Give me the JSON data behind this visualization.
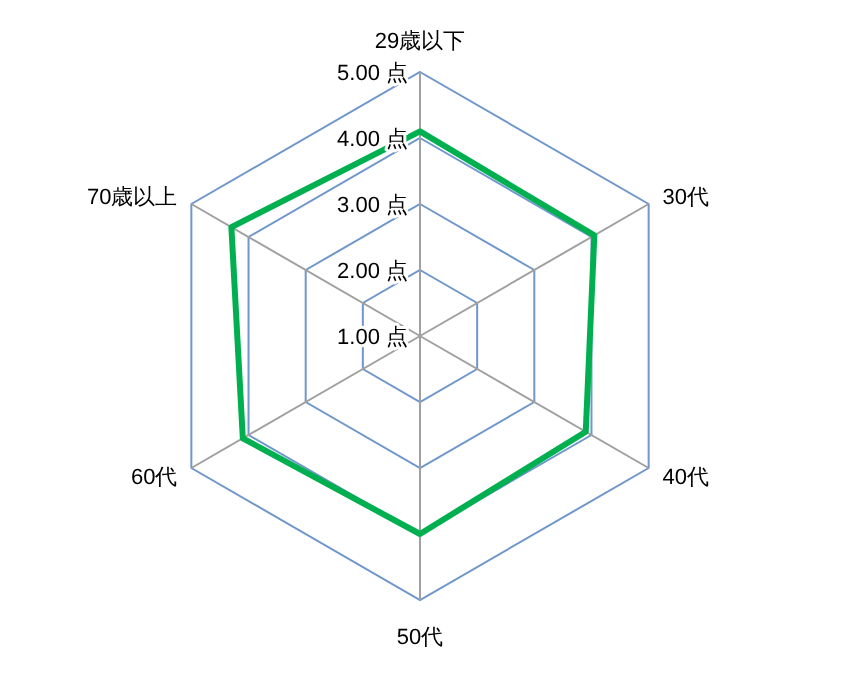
{
  "chart_data": {
    "type": "radar",
    "categories": [
      "29歳以下",
      "30代",
      "40代",
      "50代",
      "60代",
      "70歳以上"
    ],
    "series": [
      {
        "color": "#00b050",
        "values": [
          4.1,
          4.05,
          3.9,
          4.0,
          4.1,
          4.3
        ]
      }
    ],
    "ylim": [
      1,
      5
    ],
    "yticks": [
      {
        "value": 1,
        "label": "1.00 点"
      },
      {
        "value": 2,
        "label": "2.00 点"
      },
      {
        "value": 3,
        "label": "3.00 点"
      },
      {
        "value": 4,
        "label": "4.00 点"
      },
      {
        "value": 5,
        "label": "5.00 点"
      }
    ],
    "grid": true
  }
}
